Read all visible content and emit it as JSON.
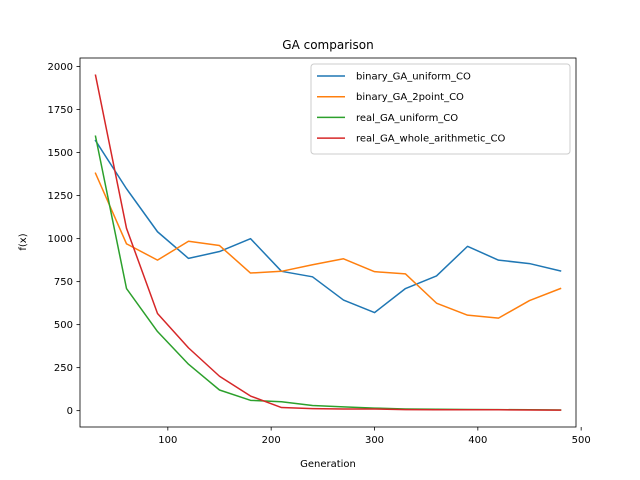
{
  "chart_data": {
    "type": "line",
    "title": "GA comparison",
    "xlabel": "Generation",
    "ylabel": "f(x)",
    "xlim": [
      15,
      495
    ],
    "ylim": [
      -95,
      2050
    ],
    "xticks": [
      100,
      200,
      300,
      400,
      500
    ],
    "yticks": [
      0,
      250,
      500,
      750,
      1000,
      1250,
      1500,
      1750,
      2000
    ],
    "grid": false,
    "legend_position": "upper-right",
    "x": [
      30,
      60,
      90,
      120,
      150,
      180,
      210,
      240,
      270,
      300,
      330,
      360,
      390,
      420,
      450,
      480
    ],
    "series": [
      {
        "name": "binary_GA_uniform_CO",
        "color": "#1f77b4",
        "values": [
          1570,
          1290,
          1040,
          885,
          925,
          1000,
          810,
          778,
          643,
          570,
          710,
          783,
          955,
          875,
          855,
          812
        ]
      },
      {
        "name": "binary_GA_2point_CO",
        "color": "#ff7f0e",
        "values": [
          1380,
          970,
          875,
          985,
          960,
          800,
          810,
          848,
          883,
          808,
          795,
          625,
          555,
          538,
          640,
          710
        ]
      },
      {
        "name": "real_GA_uniform_CO",
        "color": "#2ca02c",
        "values": [
          1595,
          710,
          460,
          270,
          120,
          60,
          52,
          30,
          22,
          15,
          10,
          8,
          7,
          6,
          5,
          4
        ]
      },
      {
        "name": "real_GA_whole_arithmetic_CO",
        "color": "#d62728",
        "values": [
          1950,
          1060,
          565,
          365,
          200,
          85,
          18,
          12,
          10,
          10,
          6,
          5,
          5,
          5,
          4,
          3
        ]
      }
    ]
  }
}
